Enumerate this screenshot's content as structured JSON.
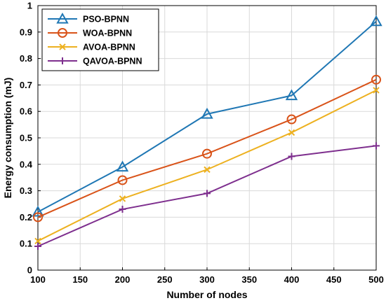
{
  "chart_data": {
    "type": "line",
    "xlabel": "Number of nodes",
    "ylabel": "Energy consumption (mJ)",
    "xlim": [
      100,
      500
    ],
    "ylim": [
      0,
      1
    ],
    "xticks": [
      100,
      150,
      200,
      250,
      300,
      350,
      400,
      450,
      500
    ],
    "yticks": [
      0,
      0.1,
      0.2,
      0.3,
      0.4,
      0.5,
      0.6,
      0.7,
      0.8,
      0.9,
      1
    ],
    "grid": true,
    "legend": "top-left",
    "x": [
      100,
      200,
      300,
      400,
      500
    ],
    "series": [
      {
        "name": "PSO-BPNN",
        "values": [
          0.22,
          0.39,
          0.59,
          0.66,
          0.94
        ],
        "color": "#1f77b4",
        "marker": "triangle"
      },
      {
        "name": "WOA-BPNN",
        "values": [
          0.2,
          0.34,
          0.44,
          0.57,
          0.72
        ],
        "color": "#d95319",
        "marker": "circle"
      },
      {
        "name": "AVOA-BPNN",
        "values": [
          0.11,
          0.27,
          0.38,
          0.52,
          0.68
        ],
        "color": "#edb120",
        "marker": "x"
      },
      {
        "name": "QAVOA-BPNN",
        "values": [
          0.09,
          0.23,
          0.29,
          0.43,
          0.47
        ],
        "color": "#7e2f8e",
        "marker": "plus"
      }
    ]
  }
}
